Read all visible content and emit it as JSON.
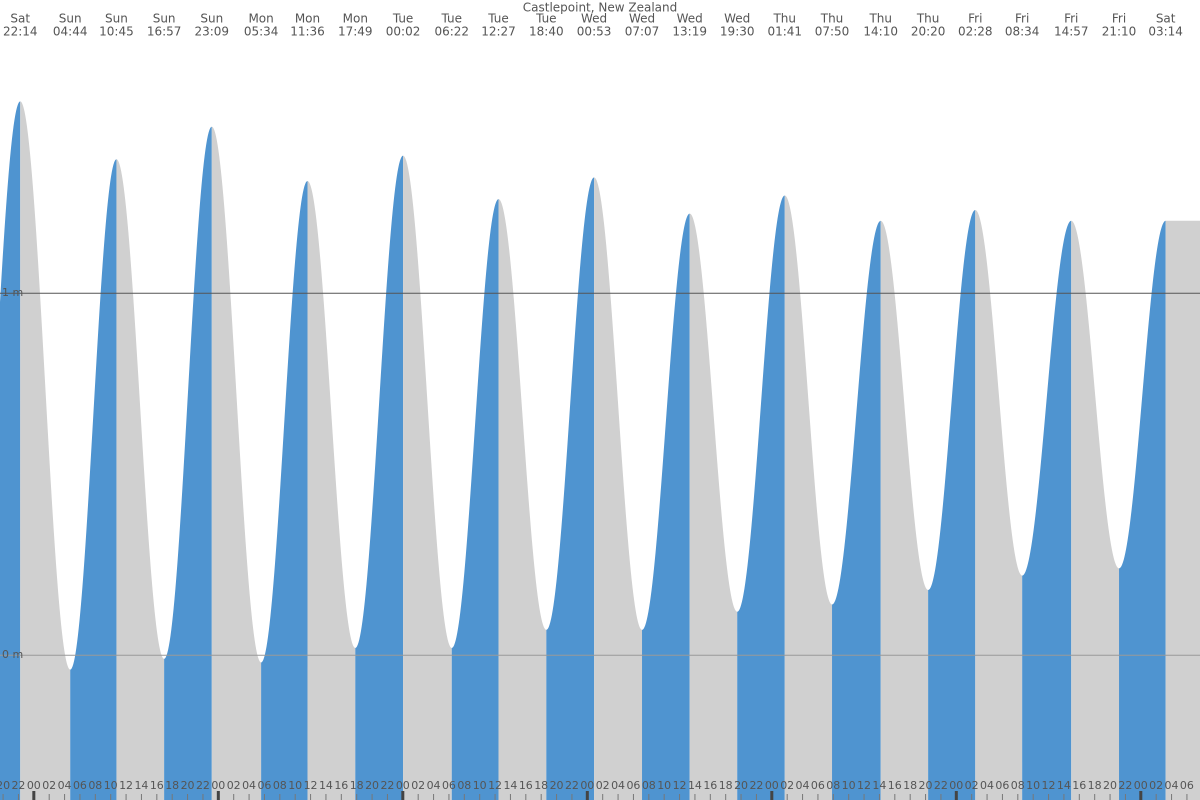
{
  "chart_data": {
    "type": "tide",
    "title": "Castlepoint, New Zealand",
    "days": [
      "Sat",
      "Sun",
      "Sun",
      "Sun",
      "Sun",
      "Mon",
      "Mon",
      "Mon",
      "Tue",
      "Tue",
      "Tue",
      "Tue",
      "Wed",
      "Wed",
      "Wed",
      "Wed",
      "Thu",
      "Thu",
      "Thu",
      "Thu",
      "Fri",
      "Fri",
      "Fri",
      "Fri",
      "Sat"
    ],
    "times": [
      "22:14",
      "04:44",
      "10:45",
      "16:57",
      "23:09",
      "05:34",
      "11:36",
      "17:49",
      "00:02",
      "06:22",
      "12:27",
      "18:40",
      "00:53",
      "07:07",
      "13:19",
      "19:30",
      "01:41",
      "07:50",
      "14:10",
      "20:20",
      "02:28",
      "08:34",
      "14:57",
      "21:10",
      "03:14"
    ],
    "values": [
      1.53,
      -0.04,
      1.37,
      -0.01,
      1.46,
      -0.02,
      1.31,
      0.02,
      1.38,
      0.02,
      1.26,
      0.07,
      1.32,
      0.07,
      1.22,
      0.12,
      1.27,
      0.14,
      1.2,
      0.18,
      1.23,
      0.22,
      1.2,
      0.24,
      1.2
    ],
    "rising_color": "#4f94d0",
    "falling_color": "#d0d0d0",
    "xlim": [
      19.6,
      175.7
    ],
    "ylim": [
      -0.4,
      1.81
    ],
    "yticks": [
      {
        "value": 0,
        "label": "0 m"
      },
      {
        "value": 1,
        "label": "1 m"
      }
    ],
    "xticks": [
      {
        "value": 20,
        "label": "20"
      },
      {
        "value": 22,
        "label": "22"
      },
      {
        "value": 24,
        "label": "00"
      },
      {
        "value": 26,
        "label": "02"
      },
      {
        "value": 28,
        "label": "04"
      },
      {
        "value": 30,
        "label": "06"
      },
      {
        "value": 32,
        "label": "08"
      },
      {
        "value": 34,
        "label": "10"
      },
      {
        "value": 36,
        "label": "12"
      },
      {
        "value": 38,
        "label": "14"
      },
      {
        "value": 40,
        "label": "16"
      },
      {
        "value": 42,
        "label": "18"
      },
      {
        "value": 44,
        "label": "20"
      },
      {
        "value": 46,
        "label": "22"
      },
      {
        "value": 48,
        "label": "00"
      },
      {
        "value": 50,
        "label": "02"
      },
      {
        "value": 52,
        "label": "04"
      },
      {
        "value": 54,
        "label": "06"
      },
      {
        "value": 56,
        "label": "08"
      },
      {
        "value": 58,
        "label": "10"
      },
      {
        "value": 60,
        "label": "12"
      },
      {
        "value": 62,
        "label": "14"
      },
      {
        "value": 64,
        "label": "16"
      },
      {
        "value": 66,
        "label": "18"
      },
      {
        "value": 68,
        "label": "20"
      },
      {
        "value": 70,
        "label": "22"
      },
      {
        "value": 72,
        "label": "00"
      },
      {
        "value": 74,
        "label": "02"
      },
      {
        "value": 76,
        "label": "04"
      },
      {
        "value": 78,
        "label": "06"
      },
      {
        "value": 80,
        "label": "08"
      },
      {
        "value": 82,
        "label": "10"
      },
      {
        "value": 84,
        "label": "12"
      },
      {
        "value": 86,
        "label": "14"
      },
      {
        "value": 88,
        "label": "16"
      },
      {
        "value": 90,
        "label": "18"
      },
      {
        "value": 92,
        "label": "20"
      },
      {
        "value": 94,
        "label": "22"
      },
      {
        "value": 96,
        "label": "00"
      },
      {
        "value": 98,
        "label": "02"
      },
      {
        "value": 100,
        "label": "04"
      },
      {
        "value": 102,
        "label": "06"
      },
      {
        "value": 104,
        "label": "08"
      },
      {
        "value": 106,
        "label": "10"
      },
      {
        "value": 108,
        "label": "12"
      },
      {
        "value": 110,
        "label": "14"
      },
      {
        "value": 112,
        "label": "16"
      },
      {
        "value": 114,
        "label": "18"
      },
      {
        "value": 116,
        "label": "20"
      },
      {
        "value": 118,
        "label": "22"
      },
      {
        "value": 120,
        "label": "00"
      },
      {
        "value": 122,
        "label": "02"
      },
      {
        "value": 124,
        "label": "04"
      },
      {
        "value": 126,
        "label": "06"
      },
      {
        "value": 128,
        "label": "08"
      },
      {
        "value": 130,
        "label": "10"
      },
      {
        "value": 132,
        "label": "12"
      },
      {
        "value": 134,
        "label": "14"
      },
      {
        "value": 136,
        "label": "16"
      },
      {
        "value": 138,
        "label": "18"
      },
      {
        "value": 140,
        "label": "20"
      },
      {
        "value": 142,
        "label": "22"
      },
      {
        "value": 144,
        "label": "00"
      },
      {
        "value": 146,
        "label": "02"
      },
      {
        "value": 148,
        "label": "04"
      },
      {
        "value": 150,
        "label": "06"
      },
      {
        "value": 152,
        "label": "08"
      },
      {
        "value": 154,
        "label": "10"
      },
      {
        "value": 156,
        "label": "12"
      },
      {
        "value": 158,
        "label": "14"
      },
      {
        "value": 160,
        "label": "16"
      },
      {
        "value": 162,
        "label": "18"
      },
      {
        "value": 164,
        "label": "20"
      },
      {
        "value": 166,
        "label": "22"
      },
      {
        "value": 168,
        "label": "00"
      },
      {
        "value": 170,
        "label": "02"
      },
      {
        "value": 172,
        "label": "04"
      },
      {
        "value": 174,
        "label": "06"
      }
    ]
  }
}
